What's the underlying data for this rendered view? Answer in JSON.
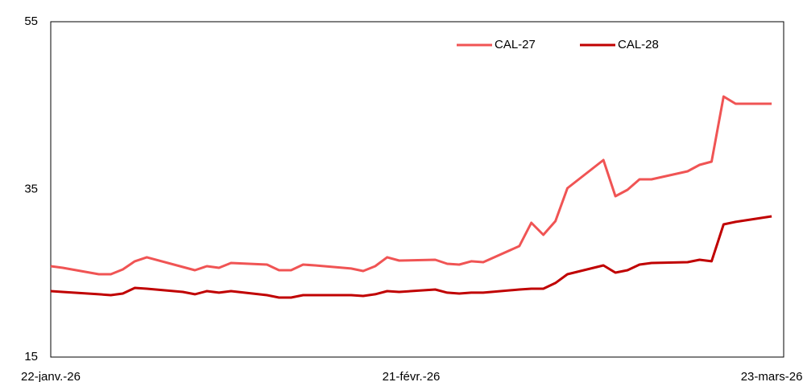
{
  "chart_data": {
    "type": "line",
    "x": [
      "2026-01-22",
      "2026-01-23",
      "2026-01-26",
      "2026-01-27",
      "2026-01-28",
      "2026-01-29",
      "2026-01-30",
      "2026-02-02",
      "2026-02-03",
      "2026-02-04",
      "2026-02-05",
      "2026-02-06",
      "2026-02-09",
      "2026-02-10",
      "2026-02-11",
      "2026-02-12",
      "2026-02-13",
      "2026-02-16",
      "2026-02-17",
      "2026-02-18",
      "2026-02-19",
      "2026-02-20",
      "2026-02-23",
      "2026-02-24",
      "2026-02-25",
      "2026-02-26",
      "2026-02-27",
      "2026-03-02",
      "2026-03-03",
      "2026-03-04",
      "2026-03-05",
      "2026-03-06",
      "2026-03-09",
      "2026-03-10",
      "2026-03-11",
      "2026-03-12",
      "2026-03-13",
      "2026-03-16",
      "2026-03-17",
      "2026-03-18",
      "2026-03-19",
      "2026-03-20",
      "2026-03-23"
    ],
    "series": [
      {
        "name": "CAL-27",
        "color": "#f05454",
        "values": [
          25.84,
          25.65,
          24.88,
          24.88,
          25.46,
          26.42,
          26.9,
          25.74,
          25.36,
          25.84,
          25.65,
          26.22,
          26.03,
          25.36,
          25.36,
          26.03,
          25.94,
          25.56,
          25.26,
          25.84,
          26.9,
          26.51,
          26.61,
          26.13,
          26.03,
          26.42,
          26.32,
          28.24,
          31.02,
          29.58,
          31.21,
          35.14,
          38.5,
          34.18,
          34.95,
          36.2,
          36.2,
          37.16,
          37.93,
          38.31,
          46.08,
          45.22,
          45.22
        ]
      },
      {
        "name": "CAL-28",
        "color": "#c00000",
        "values": [
          22.87,
          22.77,
          22.49,
          22.39,
          22.58,
          23.25,
          23.15,
          22.77,
          22.49,
          22.87,
          22.68,
          22.87,
          22.39,
          22.1,
          22.1,
          22.39,
          22.39,
          22.39,
          22.29,
          22.49,
          22.87,
          22.77,
          23.06,
          22.68,
          22.58,
          22.68,
          22.68,
          23.06,
          23.15,
          23.15,
          23.83,
          24.88,
          25.94,
          25.07,
          25.36,
          26.03,
          26.22,
          26.32,
          26.61,
          26.42,
          30.83,
          31.12,
          31.79
        ]
      }
    ],
    "xlim": [
      "2026-01-22",
      "2026-03-24"
    ],
    "xticks": [
      {
        "value": "2026-01-22",
        "label": "22-janv.-26"
      },
      {
        "value": "2026-02-21",
        "label": "21-févr.-26"
      },
      {
        "value": "2026-03-23",
        "label": "23-mars-26"
      }
    ],
    "ylim": [
      15,
      55
    ],
    "yticks": [
      15,
      35,
      55
    ],
    "grid": false,
    "legend": "top-right"
  }
}
